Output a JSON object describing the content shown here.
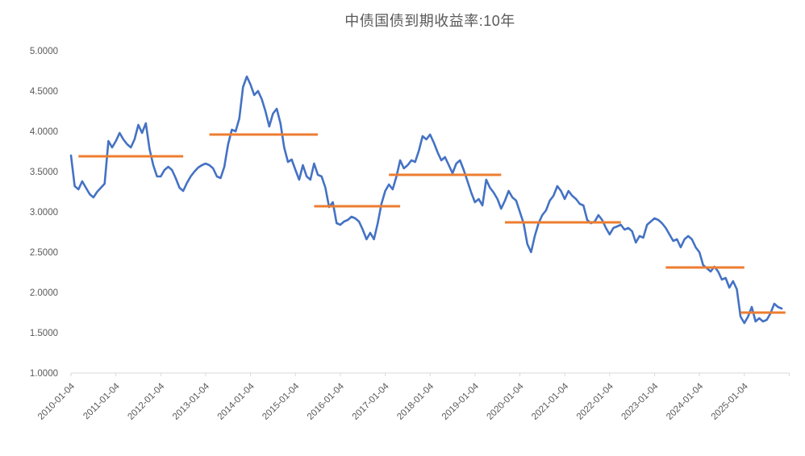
{
  "chart_data": {
    "type": "line",
    "title": "中债国债到期收益率:10年",
    "xlabel": "",
    "ylabel": "",
    "ylim": [
      1.0,
      5.0
    ],
    "y_tick_step": 0.5,
    "y_tick_labels": [
      "5.0000",
      "4.5000",
      "4.0000",
      "3.5000",
      "3.0000",
      "2.5000",
      "2.0000",
      "1.5000",
      "1.0000"
    ],
    "x_tick_labels": [
      "2010-01-04",
      "2011-01-04",
      "2012-01-04",
      "2013-01-04",
      "2014-01-04",
      "2015-01-04",
      "2016-01-04",
      "2017-01-04",
      "2018-01-04",
      "2019-01-04",
      "2020-01-04",
      "2021-01-04",
      "2022-01-04",
      "2023-01-04",
      "2024-01-04",
      "2025-01-04"
    ],
    "grid": false,
    "legend_position": "none",
    "series": [
      {
        "name": "中债国债到期收益率:10年",
        "start": "2010-01",
        "interval": "monthly",
        "values": [
          3.7,
          3.32,
          3.28,
          3.38,
          3.3,
          3.22,
          3.18,
          3.25,
          3.3,
          3.35,
          3.88,
          3.8,
          3.88,
          3.98,
          3.9,
          3.84,
          3.8,
          3.9,
          4.08,
          3.98,
          4.1,
          3.78,
          3.58,
          3.44,
          3.44,
          3.52,
          3.56,
          3.52,
          3.42,
          3.3,
          3.26,
          3.36,
          3.44,
          3.5,
          3.55,
          3.58,
          3.6,
          3.58,
          3.54,
          3.44,
          3.42,
          3.56,
          3.84,
          4.02,
          4.0,
          4.16,
          4.55,
          4.68,
          4.58,
          4.45,
          4.5,
          4.4,
          4.25,
          4.06,
          4.22,
          4.28,
          4.1,
          3.8,
          3.62,
          3.65,
          3.52,
          3.4,
          3.58,
          3.44,
          3.4,
          3.6,
          3.46,
          3.44,
          3.3,
          3.06,
          3.12,
          2.86,
          2.84,
          2.88,
          2.9,
          2.94,
          2.92,
          2.88,
          2.78,
          2.66,
          2.74,
          2.66,
          2.86,
          3.1,
          3.26,
          3.34,
          3.28,
          3.44,
          3.64,
          3.54,
          3.58,
          3.64,
          3.62,
          3.76,
          3.94,
          3.9,
          3.96,
          3.86,
          3.74,
          3.64,
          3.68,
          3.58,
          3.48,
          3.6,
          3.64,
          3.52,
          3.38,
          3.24,
          3.12,
          3.16,
          3.08,
          3.4,
          3.3,
          3.24,
          3.16,
          3.04,
          3.14,
          3.26,
          3.18,
          3.14,
          3.0,
          2.86,
          2.6,
          2.5,
          2.7,
          2.86,
          2.96,
          3.02,
          3.14,
          3.2,
          3.32,
          3.26,
          3.16,
          3.26,
          3.2,
          3.16,
          3.1,
          3.08,
          2.9,
          2.86,
          2.88,
          2.96,
          2.9,
          2.8,
          2.72,
          2.8,
          2.82,
          2.84,
          2.78,
          2.8,
          2.76,
          2.62,
          2.7,
          2.68,
          2.84,
          2.88,
          2.92,
          2.9,
          2.86,
          2.8,
          2.72,
          2.64,
          2.66,
          2.56,
          2.66,
          2.7,
          2.66,
          2.56,
          2.5,
          2.34,
          2.3,
          2.26,
          2.32,
          2.26,
          2.16,
          2.18,
          2.06,
          2.14,
          2.04,
          1.7,
          1.62,
          1.7,
          1.82,
          1.64,
          1.68,
          1.64,
          1.66,
          1.74,
          1.86,
          1.82,
          1.8
        ]
      }
    ],
    "level_segments": [
      {
        "level": 3.69,
        "from": "2010-03",
        "to": "2012-07"
      },
      {
        "level": 3.96,
        "from": "2013-02",
        "to": "2015-07"
      },
      {
        "level": 3.07,
        "from": "2015-06",
        "to": "2017-05"
      },
      {
        "level": 3.46,
        "from": "2017-02",
        "to": "2019-08"
      },
      {
        "level": 2.87,
        "from": "2019-09",
        "to": "2022-04"
      },
      {
        "level": 2.31,
        "from": "2023-04",
        "to": "2025-01"
      },
      {
        "level": 1.75,
        "from": "2024-12",
        "to": "2025-12"
      }
    ],
    "colors": {
      "series": "#4472C4",
      "levels": "#ED7D31",
      "axis_line": "#D9D9D9",
      "tick_text": "#595959",
      "title_text": "#595959",
      "background": "#FFFFFF"
    }
  }
}
